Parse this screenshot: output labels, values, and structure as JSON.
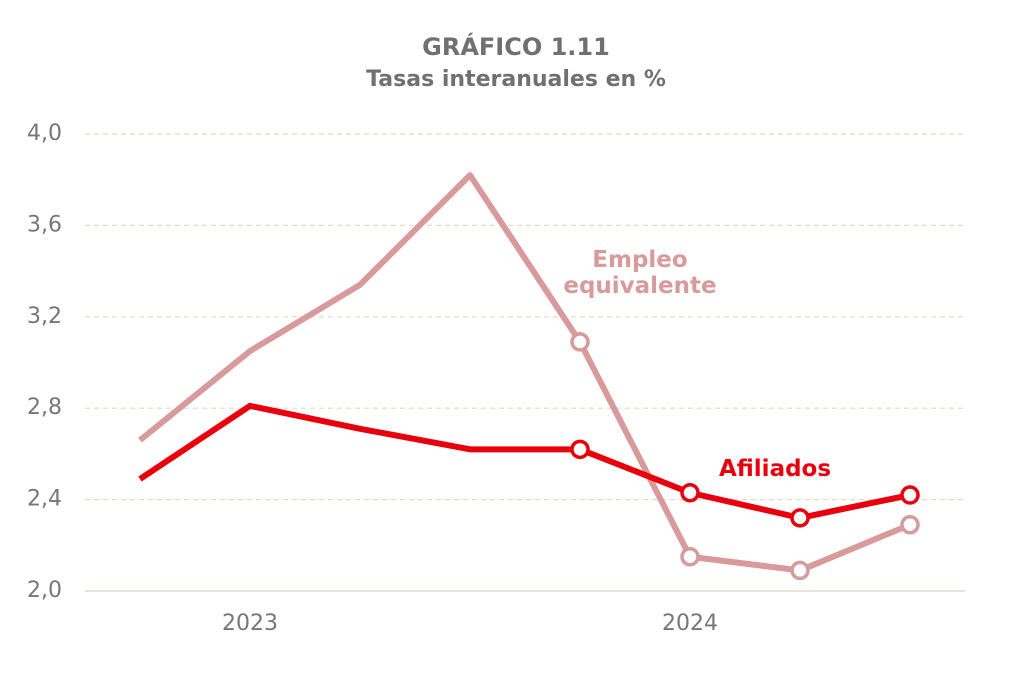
{
  "chart_data": {
    "type": "line",
    "title": "GRÁFICO 1.11",
    "subtitle": "Tasas interanuales en %",
    "categories": [
      null,
      "2023",
      null,
      null,
      null,
      "2024",
      null,
      null
    ],
    "series": [
      {
        "name": "Empleo equivalente",
        "color": "#d89a9a",
        "values": [
          2.66,
          3.05,
          3.34,
          3.82,
          3.09,
          2.15,
          2.09,
          2.29
        ],
        "marker_from": 4
      },
      {
        "name": "Afiliados",
        "color": "#e8000d",
        "values": [
          2.49,
          2.81,
          2.71,
          2.62,
          2.62,
          2.43,
          2.32,
          2.42
        ],
        "marker_from": 4
      }
    ],
    "ylim": [
      2.0,
      4.0
    ],
    "yticks": [
      {
        "value": 2.0,
        "label": "2,0"
      },
      {
        "value": 2.4,
        "label": "2,4"
      },
      {
        "value": 2.8,
        "label": "2,8"
      },
      {
        "value": 3.2,
        "label": "3,2"
      },
      {
        "value": 3.6,
        "label": "3,6"
      },
      {
        "value": 4.0,
        "label": "4,0"
      }
    ],
    "grid": true
  }
}
